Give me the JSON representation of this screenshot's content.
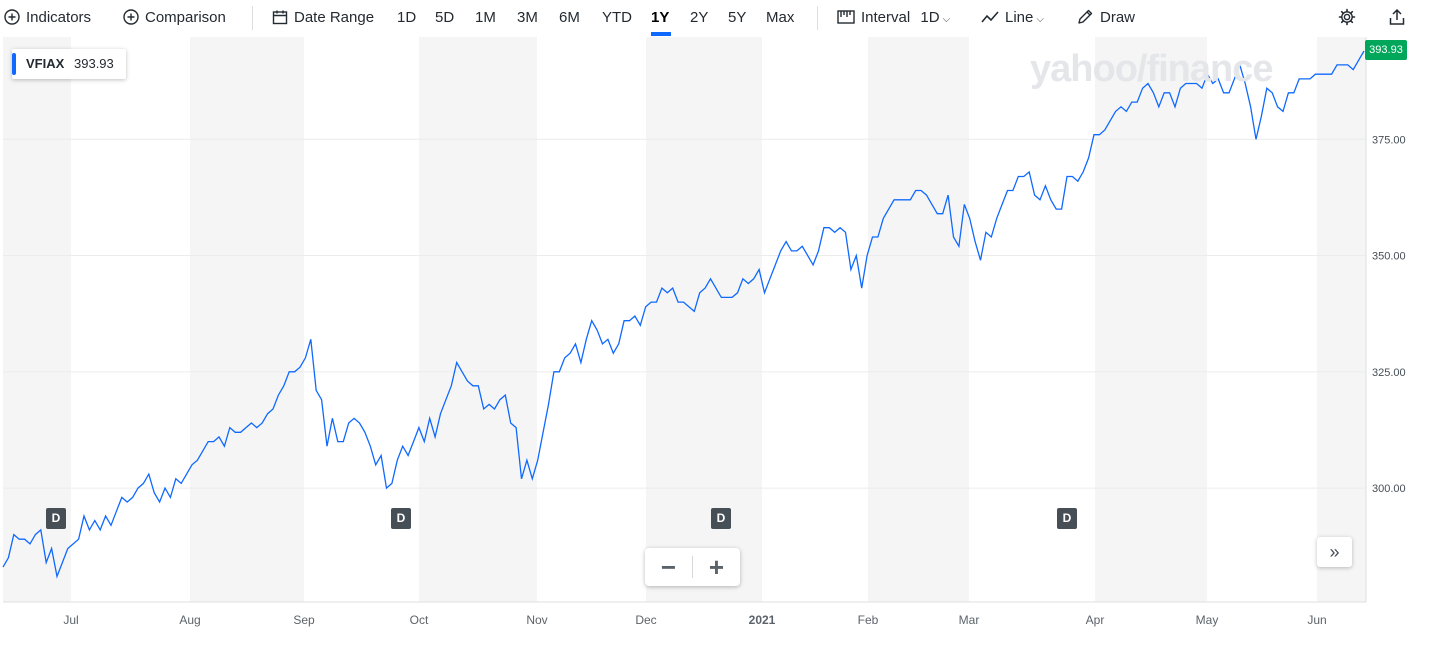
{
  "toolbar": {
    "indicators_label": "Indicators",
    "comparison_label": "Comparison",
    "date_range_label": "Date Range",
    "ranges": [
      "1D",
      "5D",
      "1M",
      "3M",
      "6M",
      "YTD",
      "1Y",
      "2Y",
      "5Y",
      "Max"
    ],
    "selected_range": "1Y",
    "interval_label": "Interval",
    "interval_value": "1D",
    "chart_type_label": "Line",
    "draw_label": "Draw"
  },
  "legend": {
    "symbol": "VFIAX",
    "value": "393.93"
  },
  "last_price_tag": "393.93",
  "watermark": "yahoo/finance",
  "dividend_marker_label": "D",
  "zoom": {
    "minus": "−",
    "plus": "+"
  },
  "expand_label": "»",
  "colors": {
    "line": "#0f69ff",
    "last_tag": "#00a65a",
    "band": "#f5f5f5",
    "grid": "#ececec",
    "badge": "#464e56"
  },
  "chart_data": {
    "type": "line",
    "title": "",
    "series": [
      {
        "name": "VFIAX",
        "values": [
          283,
          285,
          290,
          289,
          289,
          288,
          290,
          291,
          284,
          287,
          281,
          284,
          287,
          288,
          289,
          294,
          291,
          293,
          291,
          294,
          292,
          295,
          298,
          297,
          298,
          300,
          301,
          303,
          299,
          297,
          300,
          298,
          302,
          301,
          303,
          305,
          306,
          308,
          310,
          310,
          311,
          309,
          313,
          312,
          312,
          313,
          314,
          313,
          314,
          316,
          317,
          320,
          322,
          325,
          325,
          326,
          328,
          332,
          321,
          319,
          309,
          315,
          310,
          310,
          314,
          315,
          314,
          312,
          309,
          305,
          307,
          300,
          301,
          306,
          309,
          307,
          310,
          313,
          310,
          315,
          311,
          316,
          319,
          322,
          327,
          325,
          323,
          322,
          322,
          317,
          318,
          317,
          319,
          320,
          314,
          313,
          302,
          306,
          302,
          306,
          312,
          318,
          325,
          325,
          328,
          329,
          331,
          327,
          332,
          336,
          334,
          331,
          332,
          329,
          331,
          336,
          336,
          337,
          335,
          339,
          340,
          340,
          343,
          342,
          343,
          340,
          340,
          339,
          338,
          342,
          343,
          345,
          343,
          341,
          341,
          341,
          342,
          345,
          344,
          345,
          347,
          342,
          345,
          348,
          351,
          353,
          351,
          351,
          352,
          350,
          348,
          351,
          356,
          356,
          355,
          356,
          355,
          347,
          350,
          343,
          350,
          354,
          354,
          358,
          360,
          362,
          362,
          362,
          362,
          364,
          364,
          363,
          361,
          359,
          359,
          363,
          354,
          352,
          361,
          358,
          353,
          349,
          355,
          354,
          358,
          361,
          364,
          364,
          367,
          367,
          368,
          363,
          362,
          365,
          362,
          360,
          360,
          367,
          367,
          366,
          368,
          371,
          376,
          376,
          377,
          379,
          381,
          382,
          381,
          383,
          383,
          386,
          387,
          385,
          382,
          385,
          385,
          382,
          386,
          387,
          387,
          387,
          386,
          389,
          387,
          388,
          385,
          385,
          388,
          391,
          387,
          382,
          375,
          380,
          386,
          385,
          382,
          381,
          385,
          385,
          388,
          388,
          388,
          389,
          389,
          389,
          389,
          391,
          391,
          391,
          390,
          392,
          394
        ]
      }
    ],
    "x_tick_labels": [
      "Jul",
      "Aug",
      "Sep",
      "Oct",
      "Nov",
      "Dec",
      "2021",
      "Feb",
      "Mar",
      "Apr",
      "May",
      "Jun"
    ],
    "y_tick_labels": [
      "300.00",
      "325.00",
      "350.00",
      "375.00"
    ],
    "y_ticks": [
      300,
      325,
      350,
      375
    ],
    "ylim": [
      275.5,
      397
    ],
    "grid": true,
    "dividend_markers": [
      "Jun",
      "Sep",
      "Dec",
      "Mar"
    ],
    "last_value": 393.93,
    "xlabel": "",
    "ylabel": ""
  }
}
